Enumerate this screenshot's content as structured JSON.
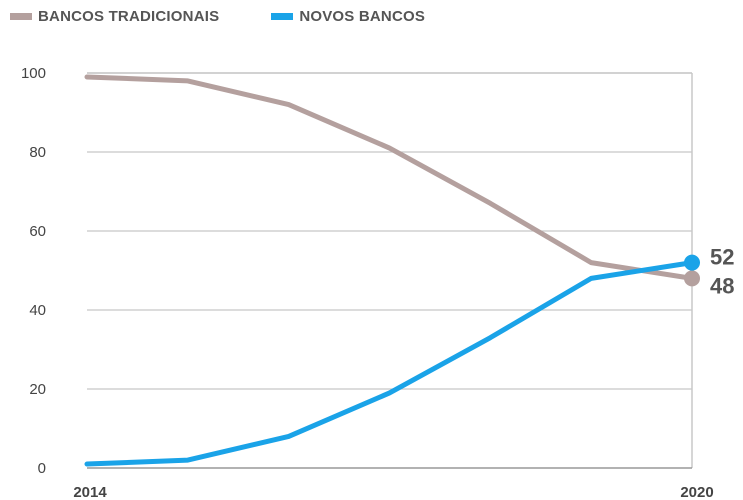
{
  "legend": [
    {
      "label": "BANCOS TRADICIONAIS",
      "color": "#b4a09e"
    },
    {
      "label": "NOVOS BANCOS",
      "color": "#1aa3e8"
    }
  ],
  "chart_data": {
    "type": "line",
    "title": "",
    "xlabel": "",
    "ylabel": "",
    "ylim": [
      0,
      100
    ],
    "yticks": [
      0,
      20,
      40,
      60,
      80,
      100
    ],
    "x_tick_labels": [
      "2014",
      "2020"
    ],
    "grid": true,
    "x": [
      0,
      1,
      2,
      3,
      4,
      5,
      6
    ],
    "series": [
      {
        "name": "BANCOS TRADICIONAIS",
        "color": "#b4a09e",
        "values": [
          99,
          98,
          92,
          81,
          67,
          52,
          48
        ],
        "end_label": "48"
      },
      {
        "name": "NOVOS BANCOS",
        "color": "#1aa3e8",
        "values": [
          1,
          2,
          8,
          19,
          33,
          48,
          52
        ],
        "end_label": "52"
      }
    ]
  }
}
